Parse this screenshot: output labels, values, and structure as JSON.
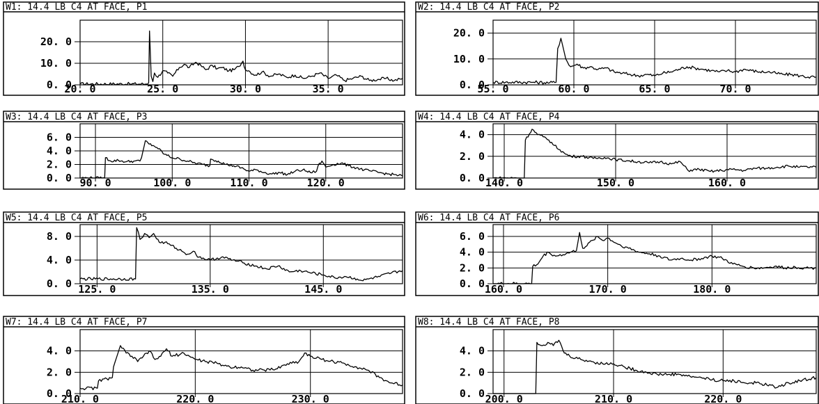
{
  "chart_data": [
    {
      "type": "line",
      "title": "W1: 14.4 LB C4 AT FACE, P1",
      "xlim": [
        20.0,
        39.5
      ],
      "ylim": [
        0.0,
        30.0
      ],
      "xticks": [
        20.0,
        25.0,
        30.0,
        35.0
      ],
      "xtick_labels": [
        "20. 0",
        "25. 0",
        "30. 0",
        "35. 0"
      ],
      "yticks": [
        0.0,
        10.0,
        20.0
      ],
      "ytick_labels": [
        "0. 0",
        "10. 0",
        "20. 0"
      ],
      "series": [
        {
          "x": [
            20.0,
            23.0,
            24.0,
            24.15,
            24.2,
            24.3,
            24.4,
            24.5,
            24.7,
            25.0,
            25.3,
            25.6,
            26.0,
            26.3,
            26.6,
            27.0,
            27.3,
            27.6,
            28.0,
            28.3,
            28.6,
            29.0,
            29.3,
            29.6,
            29.85,
            30.0,
            30.2,
            30.6,
            31.0,
            31.5,
            32.0,
            32.5,
            33.0,
            33.5,
            34.0,
            34.5,
            35.0,
            35.5,
            36.0,
            36.5,
            37.0,
            37.5,
            38.0,
            38.5,
            39.0,
            39.5
          ],
          "y": [
            0.4,
            0.4,
            0.4,
            1.0,
            25.0,
            4.0,
            1.5,
            5.5,
            3.5,
            6.5,
            5.5,
            4.0,
            8.0,
            9.5,
            8.0,
            10.5,
            9.0,
            7.0,
            9.0,
            7.5,
            8.0,
            6.5,
            7.0,
            8.5,
            11.0,
            7.0,
            6.5,
            4.5,
            6.0,
            4.0,
            5.0,
            3.5,
            4.5,
            3.0,
            4.0,
            5.5,
            3.0,
            4.5,
            2.0,
            3.0,
            4.0,
            2.0,
            2.5,
            3.0,
            2.0,
            3.0
          ]
        }
      ]
    },
    {
      "type": "line",
      "title": "W2: 14.4 LB C4 AT FACE, P2",
      "xlim": [
        55.0,
        75.0
      ],
      "ylim": [
        0.0,
        25.0
      ],
      "xticks": [
        55.0,
        60.0,
        65.0,
        70.0
      ],
      "xtick_labels": [
        "55. 0",
        "60. 0",
        "65. 0",
        "70. 0"
      ],
      "yticks": [
        0.0,
        10.0,
        20.0
      ],
      "yticks_labels_note": "",
      "ytick_labels": [
        "0. 0",
        "10. 0",
        "20. 0"
      ],
      "series": [
        {
          "x": [
            55.0,
            57.5,
            58.5,
            58.9,
            59.0,
            59.2,
            59.5,
            59.8,
            60.2,
            60.6,
            61.0,
            61.5,
            62.0,
            62.5,
            63.0,
            63.5,
            64.0,
            64.5,
            65.0,
            65.5,
            66.0,
            66.5,
            67.0,
            67.5,
            68.0,
            68.5,
            69.0,
            69.5,
            70.0,
            70.5,
            71.0,
            71.5,
            72.0,
            72.5,
            73.0,
            73.5,
            74.0,
            74.5,
            75.0
          ],
          "y": [
            1.0,
            1.0,
            0.8,
            1.0,
            14.0,
            18.0,
            10.0,
            7.0,
            8.0,
            6.5,
            7.0,
            6.0,
            6.5,
            5.0,
            4.5,
            4.0,
            3.5,
            4.0,
            3.5,
            4.5,
            5.0,
            6.0,
            7.0,
            6.5,
            6.0,
            5.5,
            5.0,
            5.5,
            5.0,
            6.0,
            5.5,
            5.0,
            5.0,
            4.5,
            4.0,
            4.0,
            3.5,
            3.0,
            3.0
          ]
        }
      ]
    },
    {
      "type": "line",
      "title": "W3: 14.4 LB C4 AT FACE, P3",
      "xlim": [
        88.0,
        130.0
      ],
      "ylim": [
        0.0,
        8.0
      ],
      "xticks": [
        90.0,
        100.0,
        110.0,
        120.0
      ],
      "xtick_labels": [
        "90. 0",
        "100. 0",
        "110. 0",
        "120. 0"
      ],
      "yticks": [
        0.0,
        2.0,
        4.0,
        6.0
      ],
      "ytick_labels": [
        "0. 0",
        "2. 0",
        "4. 0",
        "6. 0"
      ],
      "series": [
        {
          "x": [
            88.0,
            91.2,
            91.3,
            92.0,
            93.0,
            94.0,
            95.0,
            95.8,
            96.0,
            96.5,
            97.0,
            97.5,
            98.0,
            99.0,
            100.0,
            101.0,
            102.0,
            103.0,
            104.0,
            104.9,
            105.0,
            106.0,
            107.0,
            108.0,
            109.0,
            110.0,
            111.0,
            112.0,
            113.0,
            114.0,
            115.0,
            116.0,
            117.0,
            118.0,
            118.8,
            119.0,
            119.5,
            120.0,
            121.0,
            122.0,
            123.0,
            124.0,
            125.0,
            126.0,
            127.0,
            128.0,
            129.0,
            130.0
          ],
          "y": [
            0.0,
            0.0,
            3.0,
            2.5,
            2.6,
            2.4,
            2.5,
            2.5,
            3.0,
            5.5,
            5.0,
            4.8,
            4.5,
            3.5,
            3.0,
            2.8,
            2.5,
            2.2,
            2.0,
            1.8,
            2.8,
            2.5,
            2.0,
            1.8,
            1.5,
            1.0,
            1.2,
            0.8,
            0.6,
            0.8,
            0.5,
            1.0,
            1.2,
            0.8,
            1.0,
            1.8,
            2.5,
            1.6,
            2.0,
            2.2,
            1.8,
            1.5,
            1.2,
            1.0,
            0.8,
            0.6,
            0.5,
            0.3
          ]
        }
      ]
    },
    {
      "type": "line",
      "title": "W4: 14.4 LB C4 AT FACE, P4",
      "xlim": [
        139.0,
        168.0
      ],
      "ylim": [
        0.0,
        5.0
      ],
      "xticks": [
        140.0,
        150.0,
        160.0
      ],
      "xtick_labels": [
        "140. 0",
        "150. 0",
        "160. 0"
      ],
      "yticks": [
        0.0,
        2.0,
        4.0
      ],
      "ytick_labels": [
        "0. 0",
        "2. 0",
        "4. 0"
      ],
      "series": [
        {
          "x": [
            139.0,
            141.8,
            141.9,
            142.5,
            143.0,
            143.5,
            144.0,
            144.5,
            145.0,
            145.5,
            146.0,
            147.0,
            148.0,
            149.0,
            150.0,
            151.0,
            152.0,
            153.0,
            154.0,
            155.0,
            155.8,
            156.5,
            157.5,
            158.5,
            159.5,
            160.5,
            161.5,
            162.5,
            163.5,
            164.5,
            165.5,
            166.5,
            168.0
          ],
          "y": [
            0.0,
            0.0,
            3.5,
            4.5,
            4.0,
            3.8,
            3.5,
            3.0,
            2.6,
            2.2,
            2.0,
            2.0,
            1.8,
            1.9,
            1.7,
            1.6,
            1.5,
            1.4,
            1.5,
            1.3,
            1.5,
            0.7,
            0.8,
            0.6,
            0.7,
            0.8,
            0.7,
            0.9,
            0.9,
            1.0,
            1.1,
            1.0,
            1.0
          ]
        }
      ]
    },
    {
      "type": "line",
      "title": "W5: 14.4 LB C4 AT FACE, P5",
      "xlim": [
        123.5,
        152.0
      ],
      "ylim": [
        0.0,
        10.0
      ],
      "xticks": [
        125.0,
        135.0,
        145.0
      ],
      "xtick_labels": [
        "125. 0",
        "135. 0",
        "145. 0"
      ],
      "yticks": [
        0.0,
        4.0,
        8.0
      ],
      "ytick_labels": [
        "0. 0",
        "4. 0",
        "8. 0"
      ],
      "series": [
        {
          "x": [
            123.5,
            128.4,
            128.5,
            128.8,
            129.2,
            129.6,
            130.0,
            130.5,
            131.0,
            131.5,
            132.0,
            132.5,
            133.0,
            133.5,
            134.0,
            135.0,
            136.0,
            137.0,
            138.0,
            139.0,
            140.0,
            141.0,
            142.0,
            143.0,
            144.0,
            145.0,
            146.0,
            147.0,
            148.0,
            148.5,
            149.0,
            150.0,
            151.0,
            152.0
          ],
          "y": [
            0.8,
            0.8,
            9.5,
            7.5,
            8.5,
            7.8,
            8.5,
            7.0,
            7.0,
            6.5,
            6.0,
            5.5,
            5.0,
            5.5,
            4.5,
            4.0,
            4.5,
            4.0,
            3.5,
            3.0,
            2.5,
            3.0,
            2.0,
            2.2,
            1.8,
            1.5,
            1.0,
            1.2,
            0.8,
            0.5,
            0.8,
            1.2,
            1.8,
            2.2
          ]
        }
      ]
    },
    {
      "type": "line",
      "title": "W6: 14.4 LB C4 AT FACE, P6",
      "xlim": [
        159.0,
        190.0
      ],
      "ylim": [
        0.0,
        7.5
      ],
      "xticks": [
        160.0,
        170.0,
        180.0
      ],
      "xtick_labels": [
        "160. 0",
        "170. 0",
        "180. 0"
      ],
      "yticks": [
        0.0,
        2.0,
        4.0,
        6.0
      ],
      "ytick_labels": [
        "0. 0",
        "2. 0",
        "4. 0",
        "6. 0"
      ],
      "series": [
        {
          "x": [
            159.0,
            162.7,
            162.8,
            163.3,
            163.8,
            164.3,
            165.0,
            166.0,
            167.0,
            167.3,
            167.6,
            168.0,
            168.5,
            169.0,
            169.5,
            170.0,
            171.0,
            172.0,
            173.0,
            174.0,
            175.0,
            176.0,
            177.0,
            178.0,
            179.0,
            180.0,
            181.0,
            182.0,
            183.0,
            184.0,
            185.0,
            186.0,
            187.0,
            188.0,
            189.0,
            190.0
          ],
          "y": [
            0.0,
            0.0,
            2.2,
            2.5,
            3.5,
            4.0,
            3.5,
            3.8,
            4.2,
            6.5,
            4.5,
            4.8,
            5.5,
            6.0,
            5.5,
            5.8,
            5.0,
            4.5,
            4.0,
            3.8,
            3.5,
            3.0,
            3.2,
            3.0,
            3.2,
            3.5,
            3.2,
            2.5,
            2.2,
            2.0,
            2.0,
            2.2,
            2.0,
            2.1,
            2.0,
            2.0
          ]
        }
      ]
    },
    {
      "type": "line",
      "title": "W7: 14.4 LB C4 AT FACE, P7",
      "xlim": [
        210.0,
        238.0
      ],
      "ylim": [
        0.0,
        6.0
      ],
      "xticks": [
        210.0,
        220.0,
        230.0
      ],
      "xtick_labels": [
        "210. 0",
        "220. 0",
        "230. 0"
      ],
      "yticks": [
        0.0,
        2.0,
        4.0
      ],
      "ytick_labels": [
        "0. 0",
        "2. 0",
        "4. 0"
      ],
      "series": [
        {
          "x": [
            210.0,
            211.5,
            211.6,
            212.8,
            212.9,
            213.5,
            214.0,
            214.5,
            215.0,
            215.5,
            216.0,
            216.5,
            217.0,
            217.5,
            218.0,
            219.0,
            220.0,
            221.0,
            222.0,
            223.0,
            224.0,
            225.0,
            226.0,
            227.0,
            228.0,
            229.0,
            229.5,
            230.0,
            231.0,
            232.0,
            233.0,
            234.0,
            235.0,
            236.0,
            237.0,
            238.0
          ],
          "y": [
            0.5,
            0.5,
            1.2,
            1.5,
            2.5,
            4.5,
            3.8,
            3.5,
            3.0,
            3.5,
            4.0,
            3.2,
            3.5,
            4.2,
            3.5,
            3.8,
            3.2,
            3.0,
            2.8,
            2.5,
            2.5,
            2.2,
            2.2,
            2.3,
            2.8,
            3.0,
            3.8,
            3.5,
            3.2,
            3.0,
            2.8,
            2.5,
            2.2,
            1.5,
            1.0,
            0.8
          ]
        }
      ]
    },
    {
      "type": "line",
      "title": "W8: 14.4 LB C4 AT FACE, P8",
      "xlim": [
        199.0,
        228.5
      ],
      "ylim": [
        0.0,
        6.0
      ],
      "xticks": [
        200.0,
        210.0,
        220.0
      ],
      "xtick_labels": [
        "200. 0",
        "210. 0",
        "220. 0"
      ],
      "yticks": [
        0.0,
        2.0,
        4.0
      ],
      "ytick_labels": [
        "0. 0",
        "2. 0",
        "4. 0"
      ],
      "series": [
        {
          "x": [
            199.0,
            202.9,
            203.0,
            203.5,
            204.0,
            204.5,
            205.0,
            205.5,
            206.0,
            207.0,
            208.0,
            209.0,
            210.0,
            211.0,
            212.0,
            213.0,
            214.0,
            215.0,
            216.0,
            217.0,
            218.0,
            219.0,
            220.0,
            221.0,
            222.0,
            223.0,
            224.0,
            225.0,
            226.0,
            227.0,
            228.5
          ],
          "y": [
            -0.5,
            -0.5,
            4.8,
            4.5,
            4.8,
            4.5,
            5.0,
            3.8,
            3.5,
            3.2,
            3.0,
            2.8,
            2.8,
            2.5,
            2.2,
            2.0,
            1.8,
            1.8,
            1.8,
            1.6,
            1.5,
            1.3,
            1.2,
            1.2,
            1.0,
            1.0,
            0.8,
            0.6,
            1.0,
            1.2,
            1.5
          ]
        }
      ]
    }
  ]
}
